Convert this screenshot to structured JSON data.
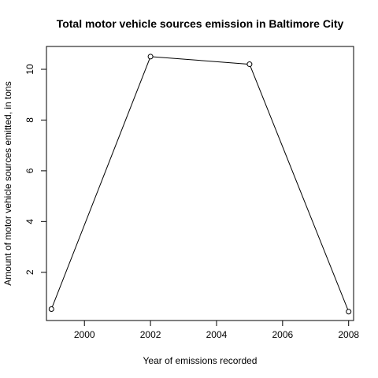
{
  "chart_data": {
    "type": "line",
    "title": "Total motor vehicle sources emission in Baltimore City",
    "xlabel": "Year of emissions recorded",
    "ylabel": "Amount of motor vehicle sources emitted, in tons",
    "x": [
      1999,
      2002,
      2005,
      2008
    ],
    "series": [
      {
        "values": [
          0.55,
          10.5,
          10.2,
          0.45
        ]
      }
    ],
    "xlim": [
      1998.85,
      2008.15
    ],
    "ylim": [
      0.1,
      10.9
    ],
    "x_ticks": [
      2000,
      2002,
      2004,
      2006,
      2008
    ],
    "x_tick_labels": [
      "2000",
      "2002",
      "2004",
      "2006",
      "2008"
    ],
    "y_ticks": [
      2,
      4,
      6,
      8,
      10
    ],
    "y_tick_labels": [
      "2",
      "4",
      "6",
      "8",
      "10"
    ],
    "marker": "open-circle",
    "grid": false,
    "box": true,
    "line_color": "#000000"
  }
}
